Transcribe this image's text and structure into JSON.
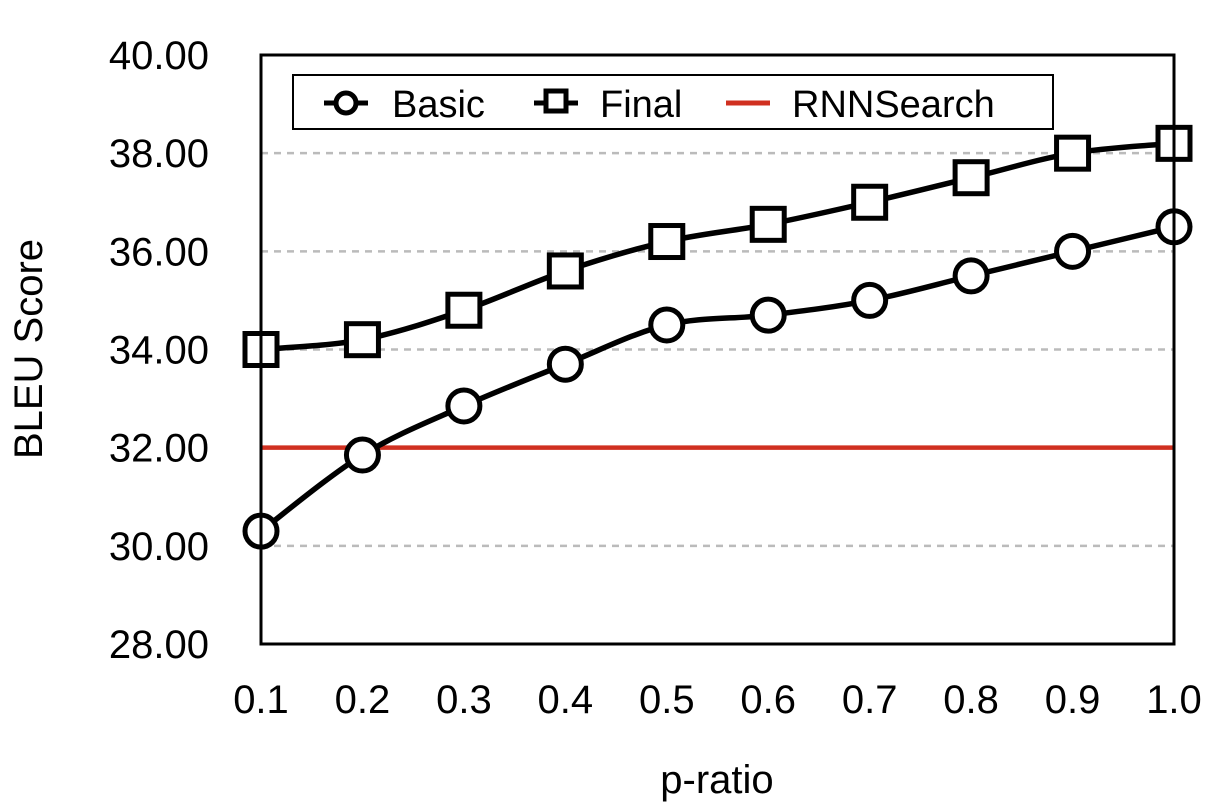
{
  "chart_data": {
    "type": "line",
    "title": "",
    "xlabel": "p-ratio",
    "ylabel": "BLEU Score",
    "x": [
      0.1,
      0.2,
      0.3,
      0.4,
      0.5,
      0.6,
      0.7,
      0.8,
      0.9,
      1.0
    ],
    "x_tick_labels": [
      "0.1",
      "0.2",
      "0.3",
      "0.4",
      "0.5",
      "0.6",
      "0.7",
      "0.8",
      "0.9",
      "1.0"
    ],
    "xlim": [
      0.1,
      1.0
    ],
    "ylim": [
      28,
      40
    ],
    "y_ticks": [
      28,
      30,
      32,
      34,
      36,
      38,
      40
    ],
    "y_tick_labels": [
      "28.00",
      "30.00",
      "32.00",
      "34.00",
      "36.00",
      "38.00",
      "40.00"
    ],
    "grid": "horizontal-dashed",
    "legend_position": "top",
    "series": [
      {
        "name": "Basic",
        "marker": "circle",
        "color": "#000000",
        "values": [
          30.3,
          31.85,
          32.85,
          33.7,
          34.5,
          34.7,
          35.0,
          35.5,
          36.0,
          36.5
        ]
      },
      {
        "name": "Final",
        "marker": "square",
        "color": "#000000",
        "values": [
          34.0,
          34.2,
          34.8,
          35.6,
          36.2,
          36.55,
          37.0,
          37.5,
          38.0,
          38.2
        ]
      },
      {
        "name": "RNNSearch",
        "marker": "none",
        "color": "#d03020",
        "values": [
          32.0,
          32.0,
          32.0,
          32.0,
          32.0,
          32.0,
          32.0,
          32.0,
          32.0,
          32.0
        ]
      }
    ]
  }
}
